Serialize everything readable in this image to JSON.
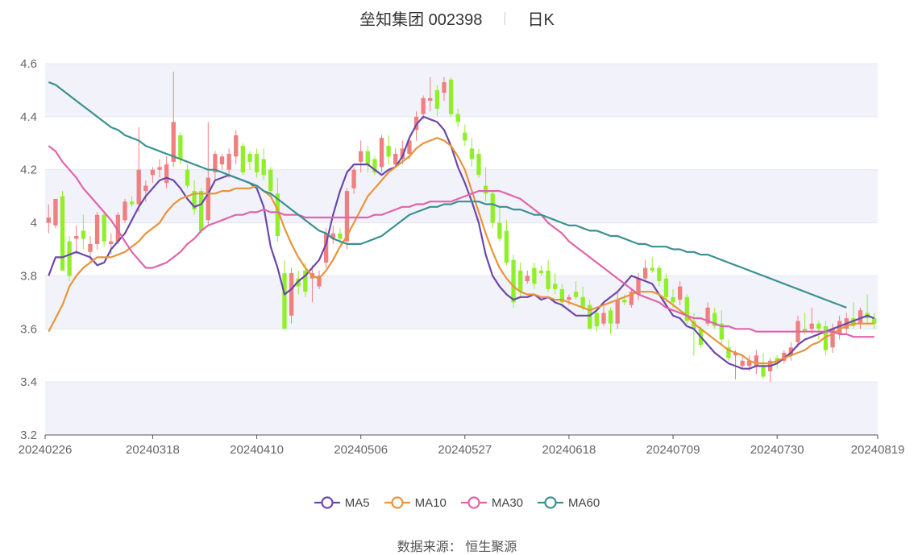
{
  "title": {
    "name": "垒知集团 002398",
    "period": "日K"
  },
  "source": {
    "label": "数据来源：",
    "value": "恒生聚源"
  },
  "colors": {
    "up": "#f08080",
    "down": "#91ef2a",
    "ma5": "#6a48a8",
    "ma10": "#e8943a",
    "ma30": "#e064aa",
    "ma60": "#3a9191",
    "grid": "#e3e7f1",
    "band": "#f2f3fa"
  },
  "chart_data": {
    "type": "candlestick",
    "ylim": [
      3.2,
      4.6
    ],
    "yticks": [
      "3.2",
      "3.4",
      "3.6",
      "3.8",
      "4",
      "4.2",
      "4.4",
      "4.6"
    ],
    "xticks": [
      {
        "label": "20240226",
        "index": 0
      },
      {
        "label": "20240318",
        "index": 15
      },
      {
        "label": "20240410",
        "index": 30
      },
      {
        "label": "20240506",
        "index": 45
      },
      {
        "label": "20240527",
        "index": 60
      },
      {
        "label": "20240618",
        "index": 75
      },
      {
        "label": "20240709",
        "index": 90
      },
      {
        "label": "20240730",
        "index": 105
      },
      {
        "label": "20240819",
        "index": 119
      }
    ],
    "ohlc": [
      [
        4.0,
        4.02,
        3.96,
        4.07
      ],
      [
        3.99,
        4.09,
        3.98,
        4.09
      ],
      [
        4.1,
        3.82,
        3.82,
        4.12
      ],
      [
        3.93,
        3.8,
        3.78,
        3.95
      ],
      [
        3.94,
        3.95,
        3.89,
        3.99
      ],
      [
        3.97,
        3.94,
        3.9,
        4.03
      ],
      [
        3.89,
        3.92,
        3.85,
        3.95
      ],
      [
        3.92,
        4.03,
        3.9,
        4.04
      ],
      [
        4.03,
        3.93,
        3.91,
        4.04
      ],
      [
        3.92,
        3.93,
        3.88,
        3.96
      ],
      [
        3.93,
        4.03,
        3.92,
        4.04
      ],
      [
        4.01,
        4.08,
        4.0,
        4.09
      ],
      [
        4.08,
        4.07,
        4.06,
        4.1
      ],
      [
        4.07,
        4.2,
        4.04,
        4.36
      ],
      [
        4.12,
        4.14,
        4.08,
        4.16
      ],
      [
        4.18,
        4.2,
        4.15,
        4.21
      ],
      [
        4.2,
        4.21,
        4.17,
        4.24
      ],
      [
        4.15,
        4.22,
        4.13,
        4.25
      ],
      [
        4.23,
        4.38,
        4.21,
        4.57
      ],
      [
        4.33,
        4.24,
        4.22,
        4.34
      ],
      [
        4.2,
        4.14,
        4.13,
        4.22
      ],
      [
        4.12,
        4.05,
        4.03,
        4.16
      ],
      [
        4.12,
        3.97,
        3.96,
        4.13
      ],
      [
        4.01,
        4.17,
        3.99,
        4.38
      ],
      [
        4.19,
        4.26,
        4.16,
        4.27
      ],
      [
        4.22,
        4.25,
        4.2,
        4.26
      ],
      [
        4.2,
        4.26,
        4.17,
        4.28
      ],
      [
        4.25,
        4.33,
        4.22,
        4.35
      ],
      [
        4.29,
        4.19,
        4.18,
        4.3
      ],
      [
        4.26,
        4.23,
        4.2,
        4.27
      ],
      [
        4.26,
        4.19,
        4.17,
        4.28
      ],
      [
        4.24,
        4.18,
        4.16,
        4.28
      ],
      [
        4.2,
        4.12,
        4.1,
        4.21
      ],
      [
        4.11,
        3.95,
        3.93,
        4.17
      ],
      [
        3.81,
        3.6,
        3.6,
        3.86
      ],
      [
        3.65,
        3.81,
        3.62,
        3.83
      ],
      [
        3.79,
        3.76,
        3.73,
        3.82
      ],
      [
        3.82,
        3.74,
        3.72,
        3.85
      ],
      [
        3.79,
        3.81,
        3.7,
        3.84
      ],
      [
        3.76,
        3.8,
        3.75,
        3.82
      ],
      [
        3.85,
        3.96,
        3.83,
        3.98
      ],
      [
        3.94,
        3.96,
        3.92,
        3.99
      ],
      [
        3.96,
        3.94,
        3.92,
        3.98
      ],
      [
        3.93,
        4.12,
        3.9,
        4.13
      ],
      [
        4.13,
        4.2,
        4.11,
        4.21
      ],
      [
        4.23,
        4.27,
        4.19,
        4.31
      ],
      [
        4.27,
        4.22,
        4.19,
        4.29
      ],
      [
        4.24,
        4.19,
        4.18,
        4.25
      ],
      [
        4.21,
        4.32,
        4.19,
        4.33
      ],
      [
        4.29,
        4.25,
        4.22,
        4.33
      ],
      [
        4.22,
        4.26,
        4.21,
        4.28
      ],
      [
        4.24,
        4.28,
        4.22,
        4.31
      ],
      [
        4.26,
        4.31,
        4.24,
        4.33
      ],
      [
        4.35,
        4.4,
        4.31,
        4.42
      ],
      [
        4.41,
        4.47,
        4.39,
        4.48
      ],
      [
        4.46,
        4.47,
        4.42,
        4.55
      ],
      [
        4.5,
        4.43,
        4.4,
        4.52
      ],
      [
        4.49,
        4.53,
        4.46,
        4.55
      ],
      [
        4.54,
        4.41,
        4.4,
        4.55
      ],
      [
        4.41,
        4.38,
        4.36,
        4.43
      ],
      [
        4.34,
        4.31,
        4.29,
        4.37
      ],
      [
        4.28,
        4.24,
        4.21,
        4.32
      ],
      [
        4.26,
        4.18,
        4.17,
        4.28
      ],
      [
        4.14,
        4.11,
        4.08,
        4.21
      ],
      [
        4.11,
        4.0,
        3.98,
        4.12
      ],
      [
        4.0,
        3.94,
        3.93,
        4.06
      ],
      [
        3.97,
        3.85,
        3.84,
        4.01
      ],
      [
        3.86,
        3.7,
        3.68,
        3.88
      ],
      [
        3.82,
        3.74,
        3.72,
        3.85
      ],
      [
        3.78,
        3.8,
        3.77,
        3.82
      ],
      [
        3.83,
        3.77,
        3.75,
        3.85
      ],
      [
        3.82,
        3.81,
        3.8,
        3.84
      ],
      [
        3.82,
        3.75,
        3.74,
        3.86
      ],
      [
        3.77,
        3.75,
        3.73,
        3.81
      ],
      [
        3.75,
        3.7,
        3.68,
        3.77
      ],
      [
        3.71,
        3.72,
        3.69,
        3.73
      ],
      [
        3.74,
        3.72,
        3.71,
        3.78
      ],
      [
        3.72,
        3.68,
        3.67,
        3.76
      ],
      [
        3.69,
        3.6,
        3.6,
        3.71
      ],
      [
        3.66,
        3.61,
        3.59,
        3.67
      ],
      [
        3.62,
        3.66,
        3.61,
        3.7
      ],
      [
        3.67,
        3.62,
        3.58,
        3.68
      ],
      [
        3.62,
        3.71,
        3.6,
        3.74
      ],
      [
        3.71,
        3.7,
        3.69,
        3.73
      ],
      [
        3.69,
        3.74,
        3.68,
        3.75
      ],
      [
        3.73,
        3.79,
        3.71,
        3.81
      ],
      [
        3.79,
        3.83,
        3.78,
        3.86
      ],
      [
        3.83,
        3.82,
        3.81,
        3.87
      ],
      [
        3.83,
        3.78,
        3.76,
        3.84
      ],
      [
        3.79,
        3.72,
        3.7,
        3.81
      ],
      [
        3.72,
        3.7,
        3.68,
        3.75
      ],
      [
        3.71,
        3.76,
        3.69,
        3.78
      ],
      [
        3.72,
        3.63,
        3.62,
        3.73
      ],
      [
        3.63,
        3.6,
        3.5,
        3.66
      ],
      [
        3.6,
        3.54,
        3.53,
        3.61
      ],
      [
        3.62,
        3.68,
        3.61,
        3.7
      ],
      [
        3.66,
        3.61,
        3.6,
        3.68
      ],
      [
        3.62,
        3.56,
        3.54,
        3.67
      ],
      [
        3.53,
        3.49,
        3.48,
        3.56
      ],
      [
        3.5,
        3.51,
        3.41,
        3.52
      ],
      [
        3.46,
        3.48,
        3.45,
        3.5
      ],
      [
        3.46,
        3.48,
        3.44,
        3.5
      ],
      [
        3.46,
        3.5,
        3.43,
        3.52
      ],
      [
        3.46,
        3.42,
        3.41,
        3.51
      ],
      [
        3.44,
        3.48,
        3.4,
        3.49
      ],
      [
        3.49,
        3.47,
        3.45,
        3.5
      ],
      [
        3.48,
        3.51,
        3.47,
        3.52
      ],
      [
        3.5,
        3.53,
        3.48,
        3.55
      ],
      [
        3.55,
        3.63,
        3.53,
        3.65
      ],
      [
        3.6,
        3.59,
        3.58,
        3.66
      ],
      [
        3.6,
        3.62,
        3.58,
        3.68
      ],
      [
        3.62,
        3.6,
        3.56,
        3.63
      ],
      [
        3.61,
        3.52,
        3.5,
        3.63
      ],
      [
        3.53,
        3.6,
        3.51,
        3.62
      ],
      [
        3.58,
        3.63,
        3.56,
        3.65
      ],
      [
        3.6,
        3.64,
        3.58,
        3.66
      ],
      [
        3.64,
        3.61,
        3.6,
        3.7
      ],
      [
        3.62,
        3.67,
        3.6,
        3.68
      ],
      [
        3.66,
        3.64,
        3.62,
        3.73
      ],
      [
        3.64,
        3.62,
        3.6,
        3.66
      ]
    ],
    "series": [
      {
        "name": "MA5",
        "values": [
          3.8,
          3.87,
          3.87,
          3.88,
          3.89,
          3.88,
          3.87,
          3.84,
          3.85,
          3.9,
          3.93,
          3.96,
          4.01,
          4.06,
          4.1,
          4.13,
          4.16,
          4.17,
          4.16,
          4.13,
          4.09,
          4.06,
          4.07,
          4.11,
          4.16,
          4.17,
          4.18,
          4.17,
          4.16,
          4.15,
          4.13,
          4.06,
          3.91,
          3.83,
          3.73,
          3.75,
          3.78,
          3.8,
          3.83,
          3.86,
          3.92,
          4.03,
          4.12,
          4.19,
          4.22,
          4.22,
          4.22,
          4.2,
          4.18,
          4.2,
          4.21,
          4.25,
          4.32,
          4.37,
          4.4,
          4.39,
          4.38,
          4.35,
          4.29,
          4.21,
          4.15,
          4.08,
          4.0,
          3.88,
          3.8,
          3.76,
          3.73,
          3.71,
          3.72,
          3.72,
          3.73,
          3.71,
          3.72,
          3.7,
          3.69,
          3.67,
          3.65,
          3.65,
          3.65,
          3.67,
          3.7,
          3.72,
          3.74,
          3.77,
          3.8,
          3.79,
          3.78,
          3.77,
          3.73,
          3.69,
          3.65,
          3.64,
          3.61,
          3.6,
          3.57,
          3.54,
          3.51,
          3.49,
          3.47,
          3.46,
          3.45,
          3.45,
          3.46,
          3.46,
          3.46,
          3.47,
          3.49,
          3.51,
          3.54,
          3.56,
          3.57,
          3.58,
          3.59,
          3.6,
          3.61,
          3.62,
          3.63,
          3.64,
          3.65,
          3.64
        ]
      },
      {
        "name": "MA10",
        "values": [
          3.59,
          3.64,
          3.69,
          3.76,
          3.8,
          3.83,
          3.85,
          3.87,
          3.87,
          3.87,
          3.88,
          3.89,
          3.91,
          3.93,
          3.96,
          3.98,
          4.0,
          4.04,
          4.07,
          4.09,
          4.1,
          4.11,
          4.11,
          4.11,
          4.11,
          4.12,
          4.12,
          4.13,
          4.13,
          4.13,
          4.14,
          4.12,
          4.1,
          4.05,
          3.98,
          3.92,
          3.87,
          3.83,
          3.8,
          3.79,
          3.82,
          3.86,
          3.91,
          3.95,
          4.0,
          4.05,
          4.1,
          4.13,
          4.16,
          4.19,
          4.21,
          4.23,
          4.25,
          4.28,
          4.3,
          4.31,
          4.32,
          4.31,
          4.29,
          4.25,
          4.2,
          4.12,
          4.04,
          3.96,
          3.89,
          3.83,
          3.79,
          3.76,
          3.74,
          3.73,
          3.73,
          3.72,
          3.72,
          3.71,
          3.71,
          3.7,
          3.69,
          3.68,
          3.67,
          3.68,
          3.69,
          3.7,
          3.71,
          3.72,
          3.73,
          3.74,
          3.74,
          3.74,
          3.73,
          3.71,
          3.69,
          3.67,
          3.65,
          3.62,
          3.6,
          3.58,
          3.56,
          3.54,
          3.52,
          3.51,
          3.5,
          3.48,
          3.47,
          3.47,
          3.47,
          3.48,
          3.49,
          3.5,
          3.51,
          3.52,
          3.54,
          3.55,
          3.57,
          3.58,
          3.6,
          3.61,
          3.62,
          3.62,
          3.62,
          3.62
        ]
      },
      {
        "name": "MA30",
        "values": [
          4.29,
          4.27,
          4.23,
          4.2,
          4.17,
          4.13,
          4.1,
          4.07,
          4.04,
          4.01,
          3.97,
          3.93,
          3.89,
          3.86,
          3.83,
          3.83,
          3.84,
          3.85,
          3.87,
          3.89,
          3.92,
          3.94,
          3.97,
          3.99,
          4.0,
          4.01,
          4.02,
          4.03,
          4.03,
          4.04,
          4.04,
          4.05,
          4.04,
          4.04,
          4.03,
          4.03,
          4.03,
          4.02,
          4.02,
          4.02,
          4.02,
          4.02,
          4.02,
          4.02,
          4.02,
          4.02,
          4.02,
          4.03,
          4.03,
          4.04,
          4.05,
          4.06,
          4.06,
          4.07,
          4.07,
          4.08,
          4.08,
          4.08,
          4.08,
          4.09,
          4.1,
          4.11,
          4.12,
          4.12,
          4.12,
          4.12,
          4.11,
          4.1,
          4.09,
          4.07,
          4.05,
          4.03,
          4.0,
          3.98,
          3.96,
          3.93,
          3.91,
          3.89,
          3.87,
          3.85,
          3.83,
          3.81,
          3.79,
          3.77,
          3.75,
          3.73,
          3.72,
          3.71,
          3.7,
          3.68,
          3.67,
          3.66,
          3.65,
          3.64,
          3.64,
          3.63,
          3.62,
          3.61,
          3.61,
          3.6,
          3.6,
          3.6,
          3.59,
          3.59,
          3.59,
          3.59,
          3.59,
          3.59,
          3.59,
          3.59,
          3.59,
          3.59,
          3.59,
          3.59,
          3.58,
          3.58,
          3.57,
          3.57,
          3.57,
          3.57
        ]
      },
      {
        "name": "MA60",
        "values": [
          4.53,
          4.52,
          4.5,
          4.48,
          4.46,
          4.44,
          4.42,
          4.4,
          4.38,
          4.36,
          4.35,
          4.33,
          4.32,
          4.31,
          4.29,
          4.28,
          4.27,
          4.26,
          4.25,
          4.24,
          4.23,
          4.22,
          4.21,
          4.2,
          4.2,
          4.19,
          4.18,
          4.17,
          4.16,
          4.15,
          4.14,
          4.12,
          4.11,
          4.09,
          4.07,
          4.05,
          4.03,
          4.01,
          3.99,
          3.97,
          3.96,
          3.94,
          3.93,
          3.92,
          3.92,
          3.92,
          3.93,
          3.94,
          3.95,
          3.97,
          3.99,
          4.01,
          4.03,
          4.04,
          4.05,
          4.06,
          4.06,
          4.07,
          4.07,
          4.08,
          4.08,
          4.08,
          4.08,
          4.07,
          4.07,
          4.06,
          4.06,
          4.05,
          4.05,
          4.04,
          4.03,
          4.03,
          4.02,
          4.01,
          4.0,
          3.99,
          3.99,
          3.98,
          3.97,
          3.97,
          3.96,
          3.95,
          3.95,
          3.94,
          3.93,
          3.92,
          3.92,
          3.91,
          3.91,
          3.91,
          3.9,
          3.9,
          3.89,
          3.89,
          3.88,
          3.88,
          3.87,
          3.86,
          3.85,
          3.84,
          3.83,
          3.82,
          3.81,
          3.8,
          3.79,
          3.78,
          3.77,
          3.76,
          3.75,
          3.74,
          3.73,
          3.72,
          3.71,
          3.7,
          3.69,
          3.68
        ]
      }
    ]
  }
}
